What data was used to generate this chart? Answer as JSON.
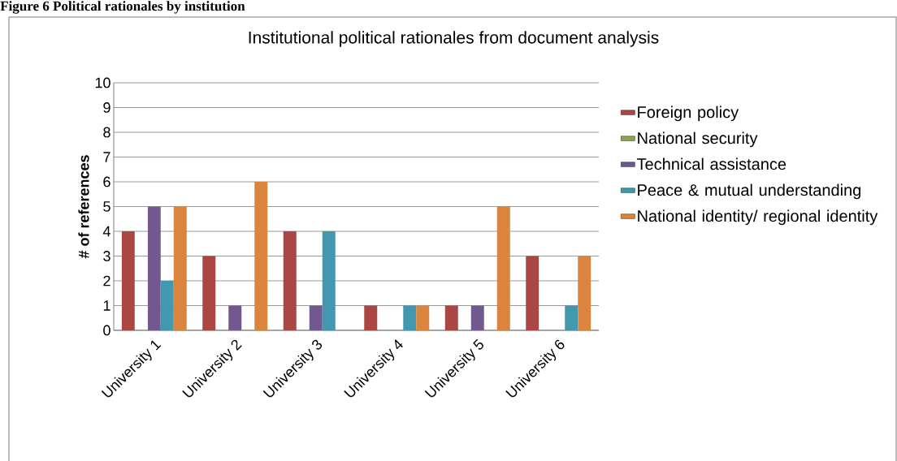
{
  "chart_data": {
    "type": "bar",
    "title": "Institutional political rationales from document analysis",
    "ylabel": "# of references",
    "annotations": [
      "Figure 6 Political rationales by institution"
    ],
    "categories": [
      "University 1",
      "University 2",
      "University 3",
      "University 4",
      "University 5",
      "University 6"
    ],
    "series": [
      {
        "name": "Foreign policy",
        "color": "#aa4643",
        "values": [
          4,
          3,
          4,
          1,
          1,
          3
        ]
      },
      {
        "name": "National security",
        "color": "#89a54e",
        "values": [
          0,
          0,
          0,
          0,
          0,
          0
        ]
      },
      {
        "name": "Technical assistance",
        "color": "#71588f",
        "values": [
          5,
          1,
          1,
          0,
          1,
          0
        ]
      },
      {
        "name": "Peace & mutual understanding",
        "color": "#4198af",
        "values": [
          2,
          0,
          4,
          1,
          0,
          1
        ]
      },
      {
        "name": "National identity/ regional identity",
        "color": "#db843d",
        "values": [
          5,
          6,
          0,
          1,
          5,
          3
        ]
      }
    ],
    "ylim": [
      0,
      10
    ],
    "yticks": [
      0,
      1,
      2,
      3,
      4,
      5,
      6,
      7,
      8,
      9,
      10
    ],
    "grid": "y",
    "legend": "right"
  }
}
